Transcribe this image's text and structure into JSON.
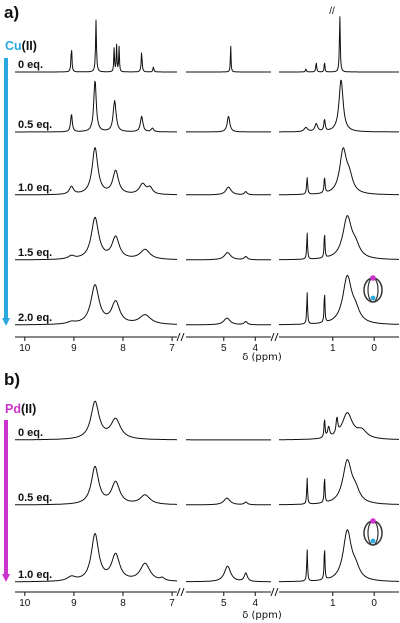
{
  "chart_data": [
    {
      "type": "line",
      "panel_label": "a)",
      "metal": {
        "symbol": "Cu",
        "oxidation": "(II)",
        "color": "#29a9e0"
      },
      "xlabel": "δ (ppm)",
      "x_axis_reversed": true,
      "x_segments": [
        [
          10.2,
          6.9
        ],
        [
          6.2,
          3.5
        ],
        [
          2.3,
          -0.6
        ]
      ],
      "x_ticks": [
        10,
        9,
        8,
        7,
        5,
        4,
        1,
        0
      ],
      "x_tick_labels": [
        "10",
        "9",
        "8",
        "7",
        "5",
        "4",
        "1",
        "0"
      ],
      "truncated_peak_marker": "//",
      "series": [
        {
          "name": "0 eq.",
          "peaks": [
            [
              9.05,
              0.011,
              0.5
            ],
            [
              8.55,
              0.011,
              1.0
            ],
            [
              8.18,
              0.008,
              0.48
            ],
            [
              8.13,
              0.008,
              0.52
            ],
            [
              8.08,
              0.008,
              0.48
            ],
            [
              7.62,
              0.011,
              0.4
            ],
            [
              7.38,
              0.011,
              0.1
            ],
            [
              4.78,
              0.012,
              0.52
            ],
            [
              1.65,
              0.013,
              0.06
            ],
            [
              1.4,
              0.013,
              0.18
            ],
            [
              1.2,
              0.01,
              0.2
            ],
            [
              0.83,
              0.012,
              1.1
            ]
          ]
        },
        {
          "name": "0.5 eq.",
          "peaks": [
            [
              9.05,
              0.02,
              0.35
            ],
            [
              8.57,
              0.03,
              1.0
            ],
            [
              8.17,
              0.035,
              0.6
            ],
            [
              7.62,
              0.03,
              0.3
            ],
            [
              7.4,
              0.03,
              0.07
            ],
            [
              4.85,
              0.05,
              0.3
            ],
            [
              1.65,
              0.05,
              0.08
            ],
            [
              1.4,
              0.04,
              0.15
            ],
            [
              1.2,
              0.02,
              0.22
            ],
            [
              0.8,
              0.06,
              1.0
            ]
          ]
        },
        {
          "name": "1.0 eq.",
          "peaks": [
            [
              9.05,
              0.05,
              0.15
            ],
            [
              8.57,
              0.07,
              0.9
            ],
            [
              8.15,
              0.07,
              0.45
            ],
            [
              7.6,
              0.08,
              0.2
            ],
            [
              7.45,
              0.06,
              0.12
            ],
            [
              4.85,
              0.1,
              0.15
            ],
            [
              4.3,
              0.05,
              0.06
            ],
            [
              1.62,
              0.015,
              0.32
            ],
            [
              1.2,
              0.015,
              0.3
            ],
            [
              0.75,
              0.1,
              0.82
            ],
            [
              0.6,
              0.1,
              0.28
            ]
          ]
        },
        {
          "name": "1.5 eq.",
          "peaks": [
            [
              9.05,
              0.08,
              0.06
            ],
            [
              8.57,
              0.09,
              0.8
            ],
            [
              8.15,
              0.09,
              0.42
            ],
            [
              7.55,
              0.12,
              0.19
            ],
            [
              4.88,
              0.12,
              0.14
            ],
            [
              4.3,
              0.06,
              0.06
            ],
            [
              1.62,
              0.012,
              0.5
            ],
            [
              1.2,
              0.012,
              0.48
            ],
            [
              0.65,
              0.13,
              0.8
            ],
            [
              0.45,
              0.12,
              0.2
            ]
          ]
        },
        {
          "name": "2.0 eq.",
          "peaks": [
            [
              9.05,
              0.1,
              0.04
            ],
            [
              8.57,
              0.1,
              0.75
            ],
            [
              8.15,
              0.1,
              0.42
            ],
            [
              7.55,
              0.14,
              0.18
            ],
            [
              4.9,
              0.12,
              0.13
            ],
            [
              4.3,
              0.06,
              0.06
            ],
            [
              1.62,
              0.012,
              0.6
            ],
            [
              1.2,
              0.012,
              0.58
            ],
            [
              0.65,
              0.13,
              0.9
            ],
            [
              0.45,
              0.12,
              0.2
            ]
          ]
        }
      ]
    },
    {
      "type": "line",
      "panel_label": "b)",
      "metal": {
        "symbol": "Pd",
        "oxidation": "(II)",
        "color": "#cc33cc"
      },
      "xlabel": "δ (ppm)",
      "x_axis_reversed": true,
      "x_segments": [
        [
          10.2,
          6.9
        ],
        [
          6.2,
          3.5
        ],
        [
          2.3,
          -0.6
        ]
      ],
      "x_ticks": [
        10,
        9,
        8,
        7,
        5,
        4,
        1,
        0
      ],
      "x_tick_labels": [
        "10",
        "9",
        "8",
        "7",
        "5",
        "4",
        "1",
        "0"
      ],
      "series": [
        {
          "name": "0 eq.",
          "peaks": [
            [
              8.57,
              0.1,
              0.72
            ],
            [
              8.15,
              0.12,
              0.38
            ],
            [
              1.2,
              0.015,
              0.35
            ],
            [
              1.1,
              0.03,
              0.2
            ],
            [
              0.9,
              0.025,
              0.3
            ],
            [
              0.65,
              0.15,
              0.5
            ],
            [
              0.3,
              0.15,
              0.15
            ]
          ]
        },
        {
          "name": "0.5 eq.",
          "peaks": [
            [
              8.57,
              0.09,
              0.72
            ],
            [
              8.15,
              0.1,
              0.42
            ],
            [
              7.55,
              0.12,
              0.18
            ],
            [
              4.9,
              0.12,
              0.13
            ],
            [
              4.3,
              0.06,
              0.05
            ],
            [
              1.62,
              0.012,
              0.5
            ],
            [
              1.2,
              0.012,
              0.5
            ],
            [
              0.65,
              0.13,
              0.82
            ],
            [
              0.45,
              0.12,
              0.2
            ]
          ]
        },
        {
          "name": "1.0 eq.",
          "peaks": [
            [
              9.05,
              0.1,
              0.08
            ],
            [
              8.57,
              0.09,
              0.9
            ],
            [
              8.15,
              0.1,
              0.5
            ],
            [
              7.55,
              0.12,
              0.34
            ],
            [
              7.2,
              0.05,
              0.05
            ],
            [
              4.88,
              0.12,
              0.3
            ],
            [
              4.3,
              0.06,
              0.16
            ],
            [
              1.62,
              0.012,
              0.6
            ],
            [
              1.2,
              0.012,
              0.62
            ],
            [
              0.65,
              0.12,
              0.95
            ],
            [
              0.45,
              0.12,
              0.2
            ]
          ]
        }
      ]
    }
  ]
}
